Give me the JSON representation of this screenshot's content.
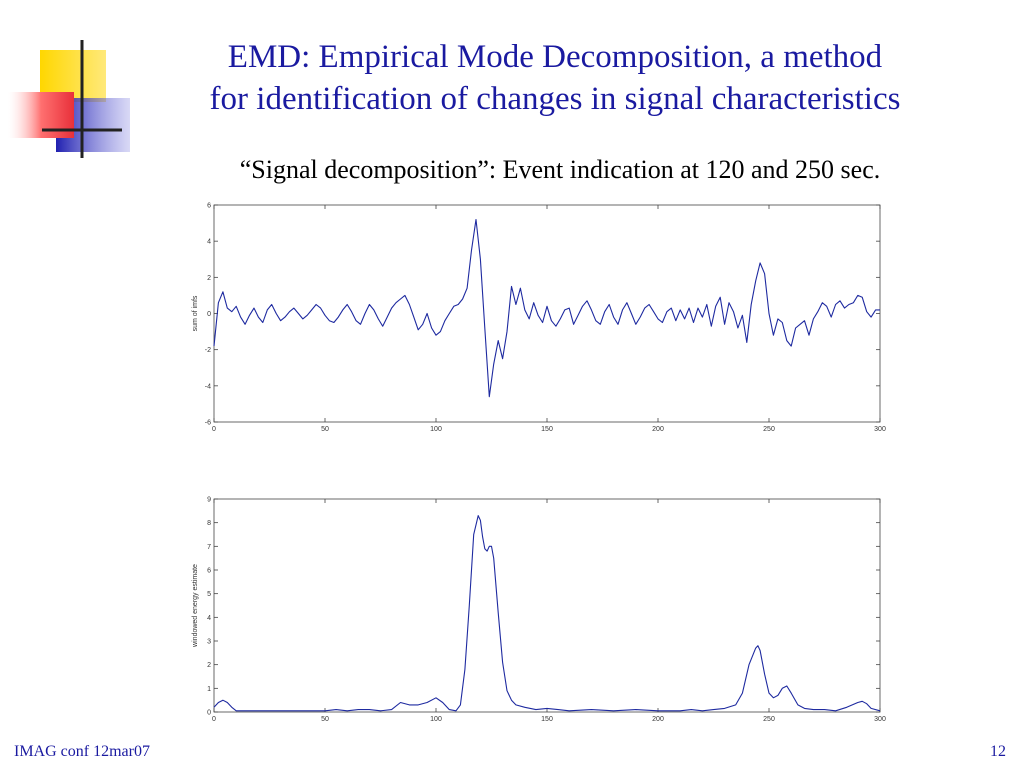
{
  "slide": {
    "title_line1": "EMD: Empirical Mode Decomposition, a method",
    "title_line2": "for identification of changes in signal characteristics",
    "subtitle": "“Signal decomposition”: Event indication at 120 and 250 sec.",
    "footer_left": "IMAG conf 12mar07",
    "page_number": "12"
  },
  "colors": {
    "title": "#1a1aa0",
    "line": "#1e2aa0",
    "logo_yellow": "#ffd700",
    "logo_red": "#e8303a",
    "logo_blue": "#3030c0"
  },
  "chart_data": [
    {
      "type": "line",
      "ylabel": "sum of imfs",
      "xlim": [
        0,
        300
      ],
      "ylim": [
        -6,
        6
      ],
      "xticks": [
        0,
        50,
        100,
        150,
        200,
        250,
        300
      ],
      "yticks": [
        -6,
        -4,
        -2,
        0,
        2,
        4,
        6
      ],
      "series": [
        {
          "x": [
            0,
            2,
            4,
            6,
            8,
            10,
            12,
            14,
            16,
            18,
            20,
            22,
            24,
            26,
            28,
            30,
            32,
            34,
            36,
            38,
            40,
            42,
            44,
            46,
            48,
            50,
            52,
            54,
            56,
            58,
            60,
            62,
            64,
            66,
            68,
            70,
            72,
            74,
            76,
            78,
            80,
            82,
            84,
            86,
            88,
            90,
            92,
            94,
            96,
            98,
            100,
            102,
            104,
            106,
            108,
            110,
            112,
            114,
            116,
            118,
            120,
            122,
            124,
            126,
            128,
            130,
            132,
            134,
            136,
            138,
            140,
            142,
            144,
            146,
            148,
            150,
            152,
            154,
            156,
            158,
            160,
            162,
            164,
            166,
            168,
            170,
            172,
            174,
            176,
            178,
            180,
            182,
            184,
            186,
            188,
            190,
            192,
            194,
            196,
            198,
            200,
            202,
            204,
            206,
            208,
            210,
            212,
            214,
            216,
            218,
            220,
            222,
            224,
            226,
            228,
            230,
            232,
            234,
            236,
            238,
            240,
            242,
            244,
            246,
            248,
            250,
            252,
            254,
            256,
            258,
            260,
            262,
            264,
            266,
            268,
            270,
            272,
            274,
            276,
            278,
            280,
            282,
            284,
            286,
            288,
            290,
            292,
            294,
            296,
            298,
            300
          ],
          "y": [
            -1.8,
            0.6,
            1.2,
            0.3,
            0.1,
            0.4,
            -0.2,
            -0.6,
            -0.1,
            0.3,
            -0.2,
            -0.5,
            0.2,
            0.5,
            0.0,
            -0.4,
            -0.2,
            0.1,
            0.3,
            0.0,
            -0.3,
            -0.1,
            0.2,
            0.5,
            0.3,
            -0.1,
            -0.4,
            -0.5,
            -0.2,
            0.2,
            0.5,
            0.1,
            -0.4,
            -0.6,
            0.0,
            0.5,
            0.2,
            -0.3,
            -0.7,
            -0.2,
            0.3,
            0.6,
            0.8,
            1.0,
            0.5,
            -0.2,
            -0.9,
            -0.6,
            0.0,
            -0.8,
            -1.2,
            -1.0,
            -0.4,
            0.0,
            0.4,
            0.5,
            0.8,
            1.4,
            3.5,
            5.2,
            3.0,
            -0.8,
            -4.6,
            -2.8,
            -1.5,
            -2.5,
            -1.0,
            1.5,
            0.5,
            1.4,
            0.2,
            -0.3,
            0.6,
            -0.1,
            -0.5,
            0.4,
            -0.4,
            -0.7,
            -0.3,
            0.2,
            0.3,
            -0.6,
            -0.1,
            0.4,
            0.7,
            0.2,
            -0.4,
            -0.6,
            0.1,
            0.5,
            -0.2,
            -0.6,
            0.2,
            0.6,
            0.0,
            -0.6,
            -0.2,
            0.3,
            0.5,
            0.1,
            -0.3,
            -0.5,
            0.1,
            0.3,
            -0.4,
            0.2,
            -0.3,
            0.3,
            -0.5,
            0.3,
            -0.2,
            0.5,
            -0.7,
            0.4,
            0.9,
            -0.6,
            0.6,
            0.1,
            -0.8,
            -0.1,
            -1.6,
            0.5,
            1.8,
            2.8,
            2.2,
            0.0,
            -1.2,
            -0.3,
            -0.5,
            -1.5,
            -1.8,
            -0.8,
            -0.6,
            -0.4,
            -1.2,
            -0.3,
            0.1,
            0.6,
            0.4,
            -0.2,
            0.5,
            0.7,
            0.3,
            0.5,
            0.6,
            1.0,
            0.9,
            0.1,
            -0.2,
            0.2,
            0.2
          ]
        }
      ]
    },
    {
      "type": "line",
      "ylabel": "windowed energy estimate",
      "xlim": [
        0,
        300
      ],
      "ylim": [
        0,
        9
      ],
      "xticks": [
        0,
        50,
        100,
        150,
        200,
        250,
        300
      ],
      "yticks": [
        0,
        1,
        2,
        3,
        4,
        5,
        6,
        7,
        8,
        9
      ],
      "series": [
        {
          "x": [
            0,
            2,
            4,
            6,
            8,
            10,
            15,
            20,
            30,
            40,
            50,
            55,
            60,
            65,
            70,
            75,
            80,
            84,
            88,
            92,
            96,
            100,
            103,
            106,
            109,
            111,
            113,
            115,
            117,
            119,
            120,
            121,
            122,
            123,
            124,
            125,
            126,
            128,
            130,
            132,
            134,
            136,
            140,
            145,
            150,
            155,
            160,
            170,
            180,
            190,
            200,
            210,
            215,
            220,
            225,
            230,
            235,
            238,
            241,
            244,
            245,
            246,
            248,
            250,
            252,
            254,
            256,
            258,
            260,
            263,
            266,
            270,
            275,
            280,
            285,
            290,
            292,
            294,
            296,
            300
          ],
          "y": [
            0.2,
            0.4,
            0.5,
            0.4,
            0.2,
            0.05,
            0.05,
            0.05,
            0.05,
            0.05,
            0.05,
            0.1,
            0.05,
            0.1,
            0.1,
            0.05,
            0.1,
            0.4,
            0.3,
            0.3,
            0.4,
            0.6,
            0.4,
            0.1,
            0.05,
            0.3,
            1.8,
            4.5,
            7.5,
            8.3,
            8.1,
            7.4,
            6.9,
            6.8,
            7.0,
            7.0,
            6.5,
            4.2,
            2.1,
            0.9,
            0.5,
            0.3,
            0.2,
            0.1,
            0.15,
            0.1,
            0.05,
            0.1,
            0.05,
            0.1,
            0.05,
            0.05,
            0.1,
            0.05,
            0.1,
            0.15,
            0.3,
            0.8,
            2.0,
            2.7,
            2.8,
            2.6,
            1.6,
            0.8,
            0.6,
            0.7,
            1.0,
            1.1,
            0.8,
            0.3,
            0.15,
            0.1,
            0.1,
            0.05,
            0.2,
            0.4,
            0.45,
            0.35,
            0.15,
            0.05
          ]
        }
      ]
    }
  ]
}
